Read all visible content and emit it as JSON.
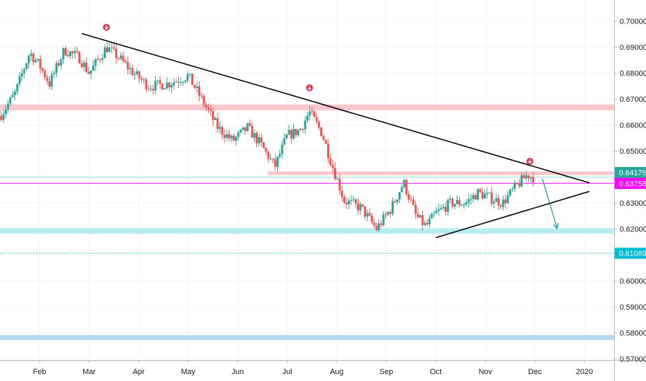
{
  "colors": {
    "up": "#26a69a",
    "down": "#ef5350",
    "resistance_zone": "#f8c8cc",
    "support_zone": "#b8ecf0",
    "bottom_zone": "#b7d6f0",
    "magenta_line": "#ff00ff",
    "cyan_line": "#00bcd4",
    "trendline": "#000000",
    "arrow": "#1aa0a8",
    "last_price_tag": "#26a69a",
    "magenta_tag": "#ff00ff",
    "dotted_tag": "#00bcd4",
    "grid": "#f0f3fa",
    "axis_line": "#b2b5be",
    "marker": "#e0334f"
  },
  "chart_data": {
    "type": "candlestick",
    "title": "",
    "xlabel": "",
    "ylabel": "",
    "x_axis": "month",
    "y_axis_side": "right",
    "ylim": [
      0.5695,
      0.7082
    ],
    "xlim": [
      0.2,
      12.6
    ],
    "grid": true,
    "y_ticks": [
      "0.70000",
      "0.69000",
      "0.68000",
      "0.67000",
      "0.66000",
      "0.65000",
      "0.64000",
      "0.63000",
      "0.62000",
      "0.61000",
      "0.60000",
      "0.59000",
      "0.58000",
      "0.57000"
    ],
    "x_ticks": [
      {
        "label": "Feb",
        "x": 1
      },
      {
        "label": "Mar",
        "x": 2
      },
      {
        "label": "Apr",
        "x": 3
      },
      {
        "label": "May",
        "x": 4
      },
      {
        "label": "Jun",
        "x": 5
      },
      {
        "label": "Jul",
        "x": 6
      },
      {
        "label": "Aug",
        "x": 7
      },
      {
        "label": "Sep",
        "x": 8
      },
      {
        "label": "Oct",
        "x": 9
      },
      {
        "label": "Nov",
        "x": 10
      },
      {
        "label": "Dec",
        "x": 11
      },
      {
        "label": "2020",
        "x": 12
      }
    ],
    "price_path": [
      [
        0.2,
        0.6635
      ],
      [
        0.5,
        0.672
      ],
      [
        0.8,
        0.688
      ],
      [
        1.0,
        0.683
      ],
      [
        1.2,
        0.676
      ],
      [
        1.5,
        0.689
      ],
      [
        1.8,
        0.686
      ],
      [
        2.0,
        0.68
      ],
      [
        2.35,
        0.69
      ],
      [
        2.6,
        0.686
      ],
      [
        2.9,
        0.68
      ],
      [
        3.2,
        0.675
      ],
      [
        3.6,
        0.676
      ],
      [
        4.0,
        0.679
      ],
      [
        4.3,
        0.669
      ],
      [
        4.6,
        0.659
      ],
      [
        4.9,
        0.654
      ],
      [
        5.2,
        0.659
      ],
      [
        5.45,
        0.653
      ],
      [
        5.75,
        0.644
      ],
      [
        6.0,
        0.656
      ],
      [
        6.25,
        0.658
      ],
      [
        6.45,
        0.665
      ],
      [
        6.7,
        0.657
      ],
      [
        6.9,
        0.645
      ],
      [
        7.15,
        0.631
      ],
      [
        7.5,
        0.628
      ],
      [
        7.8,
        0.62
      ],
      [
        8.1,
        0.628
      ],
      [
        8.35,
        0.638
      ],
      [
        8.6,
        0.625
      ],
      [
        8.8,
        0.621
      ],
      [
        9.0,
        0.626
      ],
      [
        9.3,
        0.63
      ],
      [
        9.6,
        0.63
      ],
      [
        9.85,
        0.634
      ],
      [
        10.1,
        0.632
      ],
      [
        10.35,
        0.63
      ],
      [
        10.6,
        0.636
      ],
      [
        10.85,
        0.641
      ],
      [
        10.95,
        0.64
      ]
    ],
    "trendlines": [
      {
        "name": "descending-resistance",
        "points": [
          [
            1.85,
            0.6953
          ],
          [
            12.1,
            0.6378
          ]
        ]
      },
      {
        "name": "ascending-support",
        "points": [
          [
            9.0,
            0.6167
          ],
          [
            12.1,
            0.6345
          ]
        ]
      }
    ],
    "projection_arrow": {
      "points": [
        [
          11.15,
          0.6395
        ],
        [
          11.45,
          0.6202
        ]
      ]
    },
    "markers": [
      {
        "x": 2.35,
        "y": 0.6953
      },
      {
        "x": 6.45,
        "y": 0.672
      },
      {
        "x": 10.9,
        "y": 0.6437
      }
    ],
    "zones": [
      {
        "name": "resistance-zone",
        "from": 0.6657,
        "to": 0.668,
        "x_start": 0.2
      },
      {
        "name": "support-zone",
        "from": 0.6182,
        "to": 0.6203,
        "x_start": 0.2
      },
      {
        "name": "bottom-zone",
        "from": 0.5773,
        "to": 0.5792,
        "x_start": 0.2
      },
      {
        "name": "resistance-band",
        "from": 0.6408,
        "to": 0.6422,
        "x_start": 5.6
      }
    ],
    "horizontal_lines": [
      {
        "name": "cyan-solid-line",
        "y": 0.64,
        "style": "solid"
      },
      {
        "name": "magenta-line",
        "y": 0.6376,
        "style": "solid"
      },
      {
        "name": "cyan-dotted-line",
        "y": 0.6107,
        "style": "dotted"
      }
    ],
    "price_tags": [
      {
        "name": "last-price-tag",
        "label": "0.64175",
        "value": 0.64175
      },
      {
        "name": "magenta-price-tag",
        "label": "0.63758",
        "value": 0.63758
      },
      {
        "name": "dotted-price-tag",
        "label": "0.61069",
        "value": 0.61069
      }
    ]
  }
}
